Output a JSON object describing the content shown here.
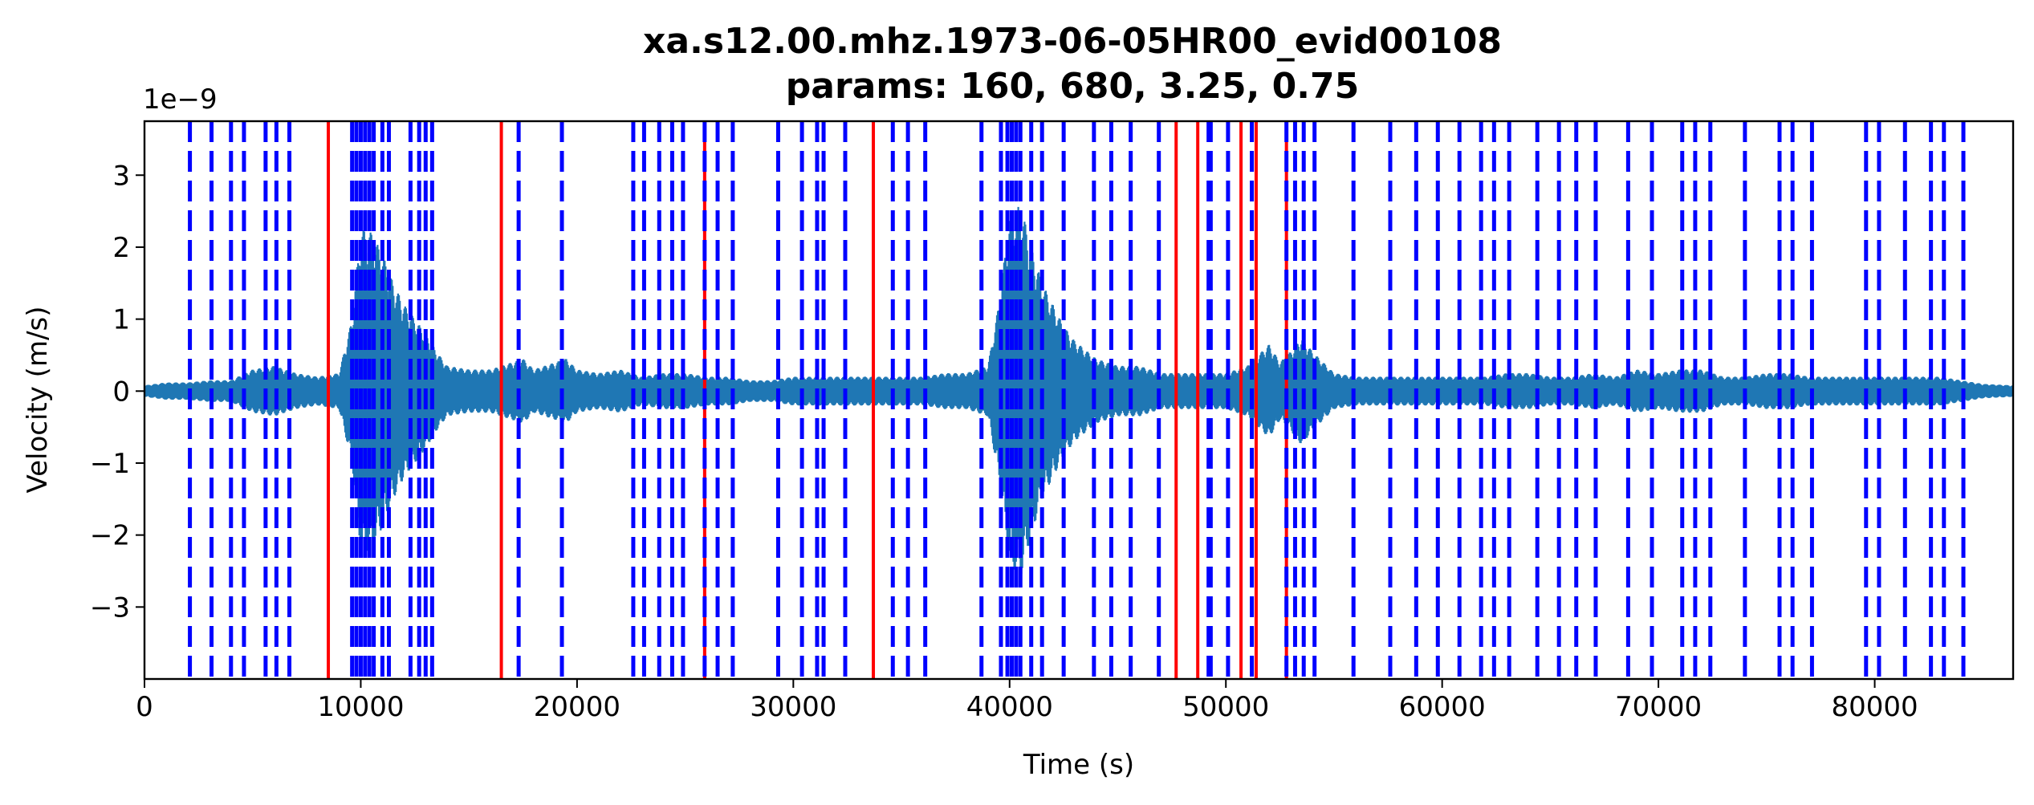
{
  "chart_data": {
    "type": "line",
    "title": "xa.s12.00.mhz.1973-06-05HR00_evid00108",
    "subtitle": "params: 160, 680, 3.25, 0.75",
    "xlabel": "Time (s)",
    "ylabel": "Velocity (m/s)",
    "y_offset_text": "1e−9",
    "xlim": [
      0,
      86400
    ],
    "ylim": [
      -4.0,
      3.75
    ],
    "grid": false,
    "x_ticks": [
      0,
      10000,
      20000,
      30000,
      40000,
      50000,
      60000,
      70000,
      80000
    ],
    "x_tick_labels": [
      "0",
      "10000",
      "20000",
      "30000",
      "40000",
      "50000",
      "60000",
      "70000",
      "80000"
    ],
    "y_ticks": [
      -3,
      -2,
      -1,
      0,
      1,
      2,
      3
    ],
    "y_tick_labels": [
      "−3",
      "−2",
      "−1",
      "0",
      "1",
      "2",
      "3"
    ],
    "series": [
      {
        "style": "waveform",
        "color": "#1f77b4",
        "envelope": {
          "x": [
            0,
            1000,
            2000,
            3000,
            4000,
            5000,
            6000,
            7000,
            8000,
            9000,
            9600,
            10000,
            10500,
            11000,
            11500,
            12000,
            12500,
            13000,
            13500,
            14000,
            15000,
            16000,
            17000,
            17500,
            18000,
            19000,
            19500,
            20000,
            21000,
            22000,
            23000,
            24000,
            25000,
            26000,
            27000,
            28000,
            29000,
            30000,
            31000,
            32000,
            33000,
            34000,
            35000,
            36000,
            37000,
            38000,
            39000,
            39500,
            40000,
            40500,
            41000,
            41500,
            42000,
            42500,
            43000,
            44000,
            45000,
            46000,
            47000,
            48000,
            49000,
            50000,
            51000,
            51500,
            52000,
            52500,
            53000,
            53500,
            54000,
            55000,
            56000,
            57000,
            58000,
            59000,
            60000,
            61000,
            62000,
            63000,
            64000,
            65000,
            66000,
            67000,
            68000,
            69000,
            70000,
            71000,
            72000,
            73000,
            74000,
            75000,
            76000,
            77000,
            78000,
            79000,
            80000,
            81000,
            82000,
            83000,
            84000,
            85000,
            86400
          ],
          "amp": [
            0.08,
            0.12,
            0.12,
            0.15,
            0.15,
            0.3,
            0.35,
            0.25,
            0.2,
            0.25,
            1.0,
            2.25,
            2.2,
            1.9,
            1.5,
            1.2,
            1.0,
            0.8,
            0.55,
            0.35,
            0.3,
            0.3,
            0.4,
            0.45,
            0.3,
            0.4,
            0.45,
            0.3,
            0.25,
            0.3,
            0.2,
            0.25,
            0.25,
            0.2,
            0.2,
            0.15,
            0.15,
            0.2,
            0.2,
            0.2,
            0.2,
            0.2,
            0.2,
            0.2,
            0.25,
            0.25,
            0.35,
            1.2,
            2.4,
            2.6,
            2.0,
            1.5,
            1.2,
            0.9,
            0.7,
            0.45,
            0.35,
            0.35,
            0.25,
            0.25,
            0.25,
            0.25,
            0.35,
            0.5,
            0.65,
            0.4,
            0.55,
            0.75,
            0.55,
            0.25,
            0.2,
            0.2,
            0.2,
            0.2,
            0.2,
            0.2,
            0.2,
            0.25,
            0.25,
            0.2,
            0.2,
            0.25,
            0.2,
            0.3,
            0.25,
            0.3,
            0.3,
            0.2,
            0.2,
            0.25,
            0.25,
            0.2,
            0.2,
            0.2,
            0.2,
            0.2,
            0.2,
            0.2,
            0.15,
            0.1,
            0.08
          ]
        }
      }
    ],
    "vertical_lines": {
      "red_solid": {
        "color": "#ff0000",
        "x": [
          8500,
          16500,
          25900,
          33700,
          47700,
          48700,
          50700,
          51400,
          52800
        ]
      },
      "blue_dashed": {
        "color": "#0000ff",
        "x": [
          2100,
          3100,
          4000,
          4600,
          5600,
          6100,
          6700,
          9600,
          9800,
          10000,
          10200,
          10400,
          10600,
          11000,
          11300,
          12300,
          12700,
          13000,
          13300,
          17300,
          19300,
          22600,
          23100,
          23800,
          24400,
          24900,
          25900,
          26500,
          27200,
          29300,
          30400,
          31100,
          31400,
          32400,
          34600,
          35300,
          36100,
          38700,
          39600,
          39900,
          40100,
          40300,
          40500,
          41000,
          41500,
          42500,
          43900,
          44700,
          45600,
          46900,
          49200,
          49300,
          50100,
          51200,
          52800,
          53200,
          53600,
          54100,
          55900,
          57600,
          58800,
          59800,
          60800,
          61800,
          62400,
          63100,
          64400,
          65400,
          66200,
          67100,
          68600,
          69700,
          71100,
          71700,
          72400,
          74000,
          75600,
          76200,
          77100,
          79600,
          80200,
          81400,
          82600,
          83200,
          84100
        ]
      }
    }
  }
}
